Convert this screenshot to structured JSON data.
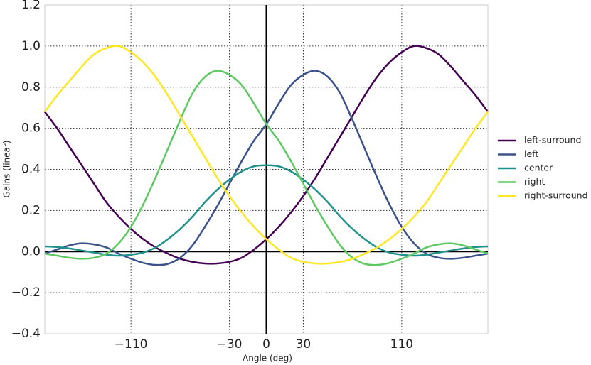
{
  "chart_data": {
    "type": "line",
    "x_label": "Angle (deg)",
    "y_label": "Gains (linear)",
    "x": [
      -180,
      -170,
      -160,
      -150,
      -140,
      -130,
      -120,
      -110,
      -100,
      -90,
      -80,
      -70,
      -60,
      -50,
      -40,
      -30,
      -20,
      -10,
      0,
      10,
      20,
      30,
      40,
      50,
      60,
      70,
      80,
      90,
      100,
      110,
      120,
      130,
      140,
      150,
      160,
      170,
      180
    ],
    "series": [
      {
        "name": "left-surround",
        "color": "#440154",
        "values": [
          0.68,
          0.6,
          0.51,
          0.42,
          0.33,
          0.24,
          0.17,
          0.11,
          0.06,
          0.02,
          -0.01,
          -0.035,
          -0.05,
          -0.058,
          -0.058,
          -0.05,
          -0.03,
          0.01,
          0.06,
          0.12,
          0.19,
          0.27,
          0.36,
          0.46,
          0.56,
          0.66,
          0.76,
          0.85,
          0.92,
          0.97,
          1.0,
          0.99,
          0.96,
          0.9,
          0.83,
          0.76,
          0.68
        ]
      },
      {
        "name": "left",
        "color": "#3b528b",
        "values": [
          -0.01,
          0.01,
          0.03,
          0.04,
          0.035,
          0.02,
          -0.01,
          -0.035,
          -0.055,
          -0.065,
          -0.06,
          -0.03,
          0.03,
          0.12,
          0.22,
          0.33,
          0.44,
          0.54,
          0.62,
          0.72,
          0.81,
          0.86,
          0.88,
          0.85,
          0.77,
          0.64,
          0.5,
          0.36,
          0.23,
          0.12,
          0.04,
          -0.01,
          -0.03,
          -0.035,
          -0.03,
          -0.02,
          -0.01
        ]
      },
      {
        "name": "center",
        "color": "#21918c",
        "values": [
          0.025,
          0.022,
          0.015,
          0.005,
          -0.005,
          -0.015,
          -0.02,
          -0.015,
          -0.005,
          0.02,
          0.06,
          0.11,
          0.17,
          0.24,
          0.3,
          0.35,
          0.39,
          0.415,
          0.42,
          0.415,
          0.39,
          0.35,
          0.3,
          0.24,
          0.17,
          0.11,
          0.06,
          0.02,
          -0.005,
          -0.015,
          -0.02,
          -0.015,
          -0.005,
          0.005,
          0.015,
          0.022,
          0.025
        ]
      },
      {
        "name": "right",
        "color": "#5ec962",
        "values": [
          -0.01,
          -0.02,
          -0.03,
          -0.035,
          -0.03,
          -0.01,
          0.04,
          0.12,
          0.23,
          0.36,
          0.5,
          0.64,
          0.77,
          0.85,
          0.88,
          0.86,
          0.81,
          0.72,
          0.62,
          0.54,
          0.44,
          0.33,
          0.22,
          0.12,
          0.03,
          -0.03,
          -0.06,
          -0.065,
          -0.055,
          -0.035,
          -0.01,
          0.02,
          0.035,
          0.04,
          0.03,
          0.01,
          -0.01
        ]
      },
      {
        "name": "right-surround",
        "color": "#fde725",
        "values": [
          0.68,
          0.76,
          0.83,
          0.9,
          0.96,
          0.99,
          1.0,
          0.97,
          0.92,
          0.85,
          0.76,
          0.66,
          0.56,
          0.46,
          0.36,
          0.27,
          0.19,
          0.12,
          0.06,
          0.01,
          -0.03,
          -0.05,
          -0.058,
          -0.058,
          -0.05,
          -0.035,
          -0.01,
          0.02,
          0.06,
          0.11,
          0.17,
          0.24,
          0.33,
          0.42,
          0.51,
          0.6,
          0.68
        ]
      }
    ],
    "xlim": [
      -180,
      180
    ],
    "xticks": [
      {
        "value": -110,
        "label": "−110"
      },
      {
        "value": -30,
        "label": "−30"
      },
      0,
      30,
      110
    ],
    "ylim": [
      -0.4,
      1.2
    ],
    "yticks": [
      {
        "value": -0.4,
        "label": "−0.4"
      },
      {
        "value": -0.2,
        "label": "−0.2"
      },
      {
        "value": 0,
        "label": "0.0"
      },
      0.2,
      0.4,
      0.6,
      0.8,
      {
        "value": 1,
        "label": "1.0"
      },
      1.2
    ],
    "grid": true,
    "legend": "right"
  }
}
